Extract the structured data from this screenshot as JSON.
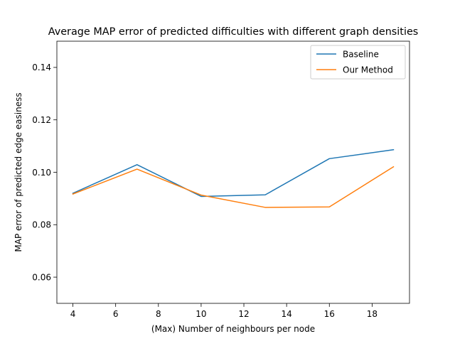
{
  "chart_data": {
    "type": "line",
    "title": "Average MAP error of predicted difficulties with different graph densities",
    "xlabel": "(Max) Number of neighbours per node",
    "ylabel": "MAP error of predicted edge easiness",
    "x": [
      4,
      7,
      10,
      13,
      16,
      19
    ],
    "xlim": [
      3.25,
      19.75
    ],
    "ylim": [
      0.05,
      0.15
    ],
    "xticks": [
      4,
      6,
      8,
      10,
      12,
      14,
      16,
      18
    ],
    "xtick_labels": [
      "4",
      "6",
      "8",
      "10",
      "12",
      "14",
      "16",
      "18"
    ],
    "yticks": [
      0.06,
      0.08,
      0.1,
      0.12,
      0.14
    ],
    "ytick_labels": [
      "0.06",
      "0.08",
      "0.10",
      "0.12",
      "0.14"
    ],
    "grid": false,
    "legend": "top-right",
    "series": [
      {
        "name": "Baseline",
        "color": "#1f77b4",
        "values": [
          0.092,
          0.1029,
          0.0908,
          0.0914,
          0.1052,
          0.1086
        ]
      },
      {
        "name": "Our Method",
        "color": "#ff7f0e",
        "values": [
          0.0917,
          0.1012,
          0.0913,
          0.0866,
          0.0868,
          0.1021
        ]
      }
    ]
  }
}
